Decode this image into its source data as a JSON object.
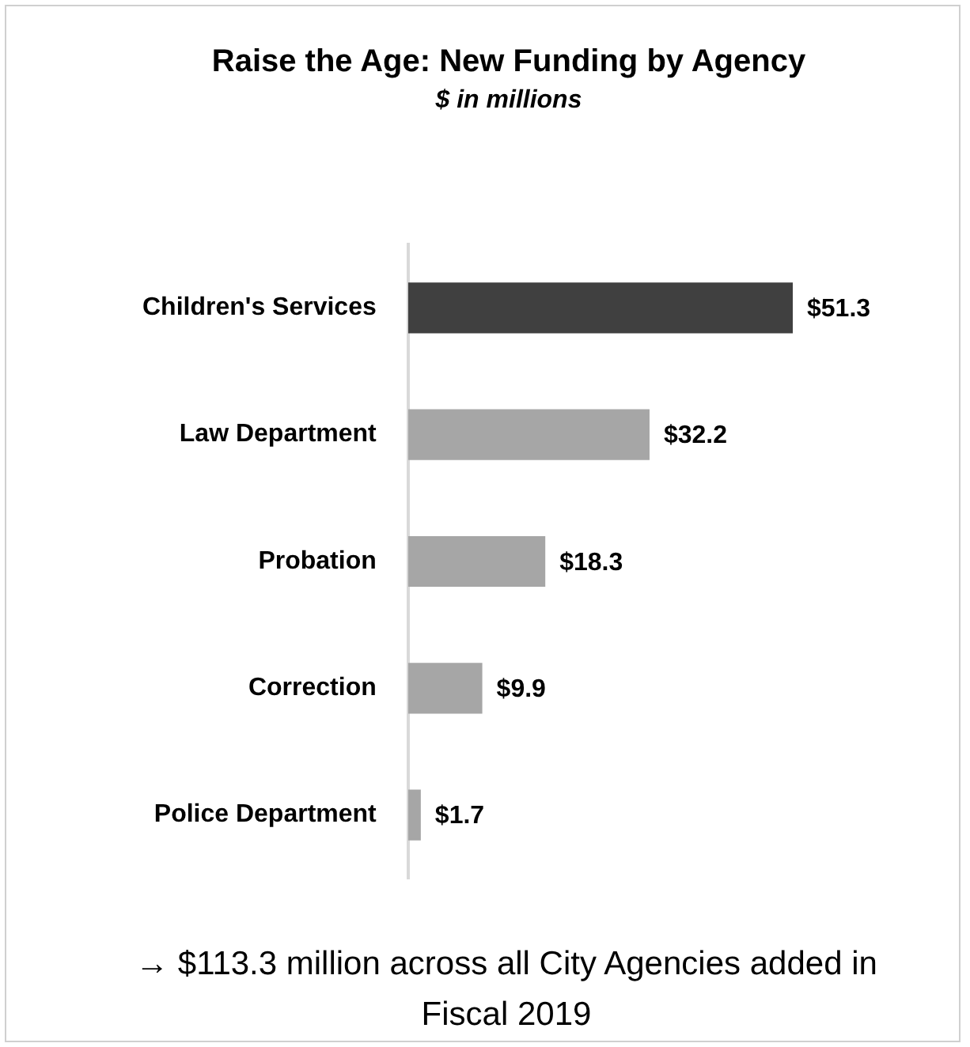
{
  "chart_data": {
    "type": "bar",
    "orientation": "horizontal",
    "title": "Raise the Age: New Funding by Agency",
    "subtitle": "$ in millions",
    "categories": [
      "Children's Services",
      "Law Department",
      "Probation",
      "Correction",
      "Police Department"
    ],
    "values": [
      51.3,
      32.2,
      18.3,
      9.9,
      1.7
    ],
    "colors": [
      "#404040",
      "#a6a6a6",
      "#a6a6a6",
      "#a6a6a6",
      "#a6a6a6"
    ],
    "value_labels": [
      "$51.3",
      "$32.2",
      "$18.3",
      "$9.9",
      "$1.7"
    ],
    "annotations": [
      "→ $113.3 million across all City Agencies added in Fiscal 2019"
    ],
    "legend": false
  }
}
